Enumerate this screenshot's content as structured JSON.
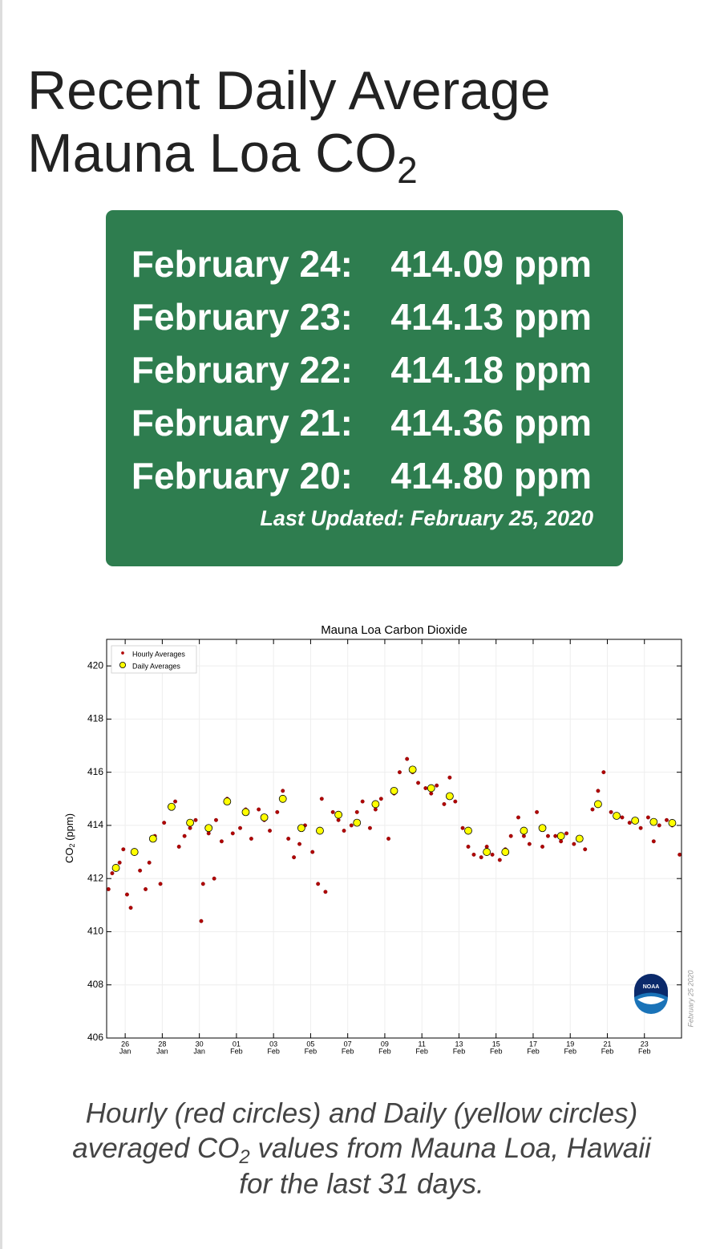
{
  "header": {
    "title_line1": "Recent Daily Average",
    "title_line2": "Mauna Loa CO",
    "title_sub": "2"
  },
  "readings_box": {
    "readings": [
      {
        "date": "February 24:",
        "value": "414.09 ppm"
      },
      {
        "date": "February 23:",
        "value": "414.13 ppm"
      },
      {
        "date": "February 22:",
        "value": "414.18 ppm"
      },
      {
        "date": "February 21:",
        "value": "414.36 ppm"
      },
      {
        "date": "February 20:",
        "value": "414.80 ppm"
      }
    ],
    "last_updated": "Last Updated: February 25, 2020"
  },
  "chart_data": {
    "type": "scatter",
    "title": "Mauna Loa Carbon Dioxide",
    "ylabel": {
      "main": "CO",
      "sub": "2",
      "rest": " (ppm)"
    },
    "watermark": "February 25 2020",
    "logo_text": "NOAA",
    "xlim": [
      25,
      56
    ],
    "ylim": [
      406,
      421
    ],
    "yticks": [
      406,
      408,
      410,
      412,
      414,
      416,
      418,
      420
    ],
    "xticks": [
      {
        "value": 26,
        "label": "26",
        "sublabel": "Jan"
      },
      {
        "value": 28,
        "label": "28",
        "sublabel": "Jan"
      },
      {
        "value": 30,
        "label": "30",
        "sublabel": "Jan"
      },
      {
        "value": 32,
        "label": "01",
        "sublabel": "Feb"
      },
      {
        "value": 34,
        "label": "03",
        "sublabel": "Feb"
      },
      {
        "value": 36,
        "label": "05",
        "sublabel": "Feb"
      },
      {
        "value": 38,
        "label": "07",
        "sublabel": "Feb"
      },
      {
        "value": 40,
        "label": "09",
        "sublabel": "Feb"
      },
      {
        "value": 42,
        "label": "11",
        "sublabel": "Feb"
      },
      {
        "value": 44,
        "label": "13",
        "sublabel": "Feb"
      },
      {
        "value": 46,
        "label": "15",
        "sublabel": "Feb"
      },
      {
        "value": 48,
        "label": "17",
        "sublabel": "Feb"
      },
      {
        "value": 50,
        "label": "19",
        "sublabel": "Feb"
      },
      {
        "value": 52,
        "label": "21",
        "sublabel": "Feb"
      },
      {
        "value": 54,
        "label": "23",
        "sublabel": "Feb"
      }
    ],
    "grid": true,
    "legend": "upper left",
    "series": [
      {
        "name": "Hourly Averages",
        "color": "#b00000",
        "marker_size": 2.3,
        "x": [
          25.1,
          25.3,
          25.7,
          25.9,
          26.1,
          26.3,
          26.6,
          26.8,
          27.1,
          27.3,
          27.6,
          27.9,
          28.1,
          28.4,
          28.7,
          28.9,
          29.2,
          29.5,
          29.8,
          30.1,
          30.2,
          30.5,
          30.8,
          30.9,
          31.2,
          31.5,
          31.8,
          32.2,
          32.5,
          32.8,
          33.2,
          33.5,
          33.8,
          34.2,
          34.5,
          34.8,
          35.1,
          35.4,
          35.7,
          36.1,
          36.4,
          36.6,
          36.8,
          37.2,
          37.5,
          37.8,
          38.2,
          38.5,
          38.8,
          39.2,
          39.5,
          39.8,
          40.2,
          40.5,
          40.8,
          41.2,
          41.5,
          41.8,
          42.2,
          42.5,
          42.8,
          43.2,
          43.5,
          43.8,
          44.2,
          44.5,
          44.8,
          45.2,
          45.5,
          45.8,
          46.2,
          46.5,
          46.8,
          47.2,
          47.5,
          47.8,
          48.2,
          48.5,
          48.8,
          49.2,
          49.5,
          49.8,
          50.2,
          50.5,
          50.8,
          51.2,
          51.5,
          51.8,
          52.2,
          52.5,
          52.8,
          53.2,
          53.5,
          53.8,
          54.2,
          54.5,
          54.8,
          55.2,
          55.5,
          55.9
        ],
        "values": [
          411.6,
          412.2,
          412.6,
          413.1,
          411.4,
          410.9,
          413.0,
          412.3,
          411.6,
          412.6,
          413.6,
          411.8,
          414.1,
          414.7,
          414.9,
          413.2,
          413.6,
          413.9,
          414.2,
          410.4,
          411.8,
          413.7,
          412.0,
          414.2,
          413.4,
          415.0,
          413.7,
          413.9,
          414.6,
          413.5,
          414.6,
          414.2,
          413.8,
          414.5,
          415.3,
          413.5,
          412.8,
          413.3,
          414.0,
          413.0,
          411.8,
          415.0,
          411.5,
          414.5,
          414.2,
          413.8,
          414.0,
          414.5,
          414.9,
          413.9,
          414.6,
          415.0,
          413.5,
          415.2,
          416.0,
          416.5,
          416.0,
          415.6,
          415.4,
          415.2,
          415.5,
          414.8,
          415.8,
          414.9,
          413.9,
          413.2,
          412.9,
          412.8,
          413.2,
          412.9,
          412.7,
          413.1,
          413.6,
          414.3,
          413.6,
          413.3,
          414.5,
          413.2,
          413.6,
          413.6,
          413.4,
          413.7,
          413.3,
          413.5,
          413.1,
          414.6,
          415.3,
          416.0,
          414.5,
          414.4,
          414.3,
          414.1,
          414.2,
          413.9,
          414.3,
          413.4,
          414.0,
          414.2,
          414.0,
          412.9
        ]
      },
      {
        "name": "Daily Averages",
        "color": "#ffff00",
        "marker_size": 4.5,
        "x": [
          25.5,
          26.5,
          27.5,
          28.5,
          29.5,
          30.5,
          31.5,
          32.5,
          33.5,
          34.5,
          35.5,
          36.5,
          37.5,
          38.5,
          39.5,
          40.5,
          41.5,
          42.5,
          43.5,
          44.5,
          45.5,
          46.5,
          47.5,
          48.5,
          49.5,
          50.5,
          51.5,
          52.5,
          53.5,
          54.5,
          55.5
        ],
        "values": [
          412.4,
          413.0,
          413.5,
          414.7,
          414.1,
          413.9,
          414.9,
          414.5,
          414.3,
          415.0,
          413.9,
          413.8,
          414.4,
          414.1,
          414.8,
          415.3,
          416.1,
          415.4,
          415.1,
          413.8,
          413.0,
          413.0,
          413.8,
          413.9,
          413.6,
          413.5,
          414.8,
          414.36,
          414.18,
          414.13,
          414.09
        ]
      }
    ]
  },
  "caption": {
    "line1": "Hourly (red circles) and Daily (yellow circles)",
    "line2_a": "averaged CO",
    "line2_sub": "2",
    "line2_b": " values from Mauna Loa, Hawaii",
    "line3": "for the last 31 days."
  }
}
